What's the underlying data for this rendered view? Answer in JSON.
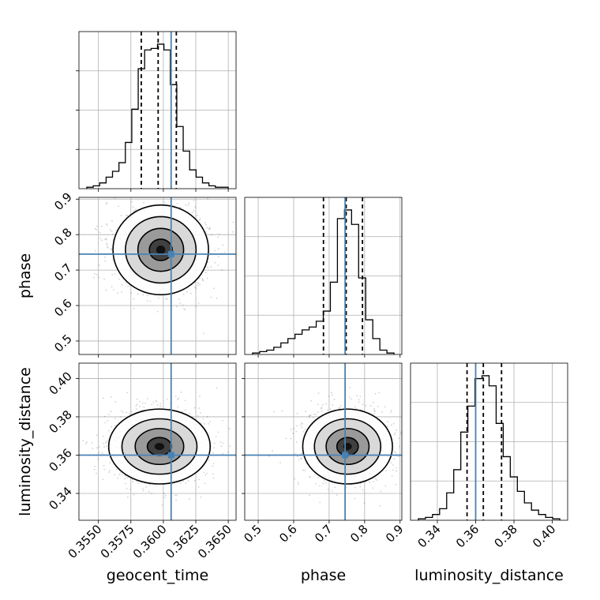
{
  "chart_data": {
    "type": "corner",
    "parameters": [
      {
        "name": "geocent_time",
        "range": [
          0.3535,
          0.3656
        ],
        "truth": 0.3606,
        "quantiles": [
          0.3583,
          0.3596,
          0.361
        ],
        "ticks": [
          "0.3550",
          "0.3575",
          "0.3600",
          "0.3625",
          "0.3650"
        ]
      },
      {
        "name": "phase",
        "range": [
          0.462,
          0.905
        ],
        "truth": 0.745,
        "quantiles": [
          0.684,
          0.748,
          0.794
        ],
        "ticks": [
          "0.5",
          "0.6",
          "0.7",
          "0.8",
          "0.9"
        ]
      },
      {
        "name": "luminosity_distance",
        "range": [
          0.326,
          0.408
        ],
        "truth": 0.36,
        "quantiles": [
          0.3555,
          0.364,
          0.3735
        ],
        "ticks": [
          "0.34",
          "0.36",
          "0.38",
          "0.40"
        ]
      }
    ],
    "histograms": [
      {
        "param": "geocent_time",
        "counts": [
          1,
          2,
          4,
          8,
          12,
          18,
          32,
          55,
          83,
          96,
          97,
          100,
          96,
          72,
          43,
          26,
          13,
          8,
          4,
          2,
          1,
          1
        ]
      },
      {
        "param": "phase",
        "counts": [
          1,
          2,
          3,
          5,
          8,
          11,
          14,
          17,
          19,
          23,
          30,
          50,
          94,
          100,
          90,
          53,
          24,
          11,
          3,
          1
        ]
      },
      {
        "param": "luminosity_distance",
        "counts": [
          1,
          2,
          4,
          8,
          19,
          35,
          61,
          79,
          98,
          100,
          93,
          67,
          44,
          30,
          20,
          12,
          7,
          4,
          2,
          1
        ]
      }
    ],
    "densities": [
      {
        "x": "geocent_time",
        "y": "phase",
        "center": [
          0.3598,
          0.757
        ],
        "spread": [
          0.0016,
          0.055
        ]
      },
      {
        "x": "geocent_time",
        "y": "luminosity_distance",
        "center": [
          0.3597,
          0.3645
        ],
        "spread": [
          0.0017,
          0.0085
        ]
      },
      {
        "x": "phase",
        "y": "luminosity_distance",
        "center": [
          0.752,
          0.3645
        ],
        "spread": [
          0.055,
          0.0085
        ]
      }
    ],
    "colors": {
      "truth": "#4682b4",
      "quantile": "#000000",
      "grid": "#b0b0b0"
    },
    "grid": true
  }
}
